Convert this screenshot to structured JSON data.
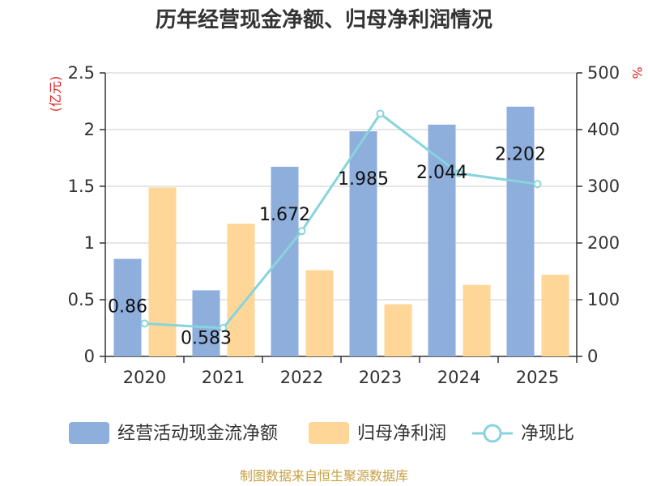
{
  "chart_data": {
    "type": "bar",
    "title": "历年经营现金净额、归母净利润情况",
    "categories": [
      "2020",
      "2021",
      "2022",
      "2023",
      "2024",
      "2025"
    ],
    "series": [
      {
        "name": "经营活动现金流净额",
        "type": "bar",
        "axis": "left",
        "color": "#8eaedc",
        "values": [
          0.86,
          0.583,
          1.672,
          1.985,
          2.044,
          2.202
        ],
        "labels": [
          "0.86",
          "0.583",
          "1.672",
          "1.985",
          "2.044",
          "2.202"
        ]
      },
      {
        "name": "归母净利润",
        "type": "bar",
        "axis": "left",
        "color": "#fdd698",
        "values": [
          1.49,
          1.17,
          0.76,
          0.46,
          0.63,
          0.72
        ]
      },
      {
        "name": "净现比",
        "type": "line",
        "axis": "right",
        "color": "#88d4dc",
        "values": [
          58,
          50,
          221,
          428,
          323,
          304
        ]
      }
    ],
    "left_axis": {
      "unit": "(亿元)",
      "ylim": [
        0,
        2.5
      ],
      "ticks": [
        "0",
        "0.5",
        "1",
        "1.5",
        "2",
        "2.5"
      ]
    },
    "right_axis": {
      "unit": "%",
      "ylim": [
        0,
        500
      ],
      "ticks": [
        "0",
        "100",
        "200",
        "300",
        "400",
        "500"
      ]
    },
    "grid": true,
    "legend_position": "bottom"
  },
  "source": "制图数据来自恒生聚源数据库"
}
